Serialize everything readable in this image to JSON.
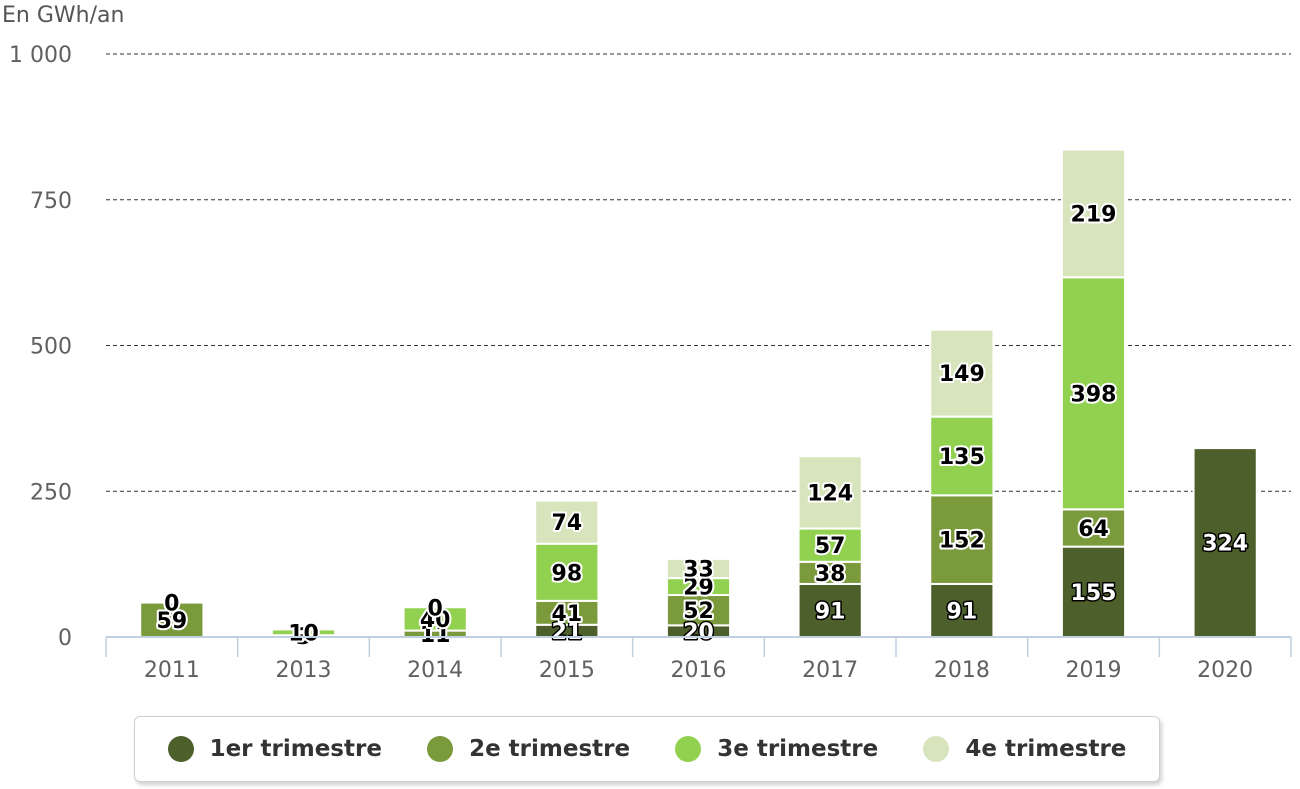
{
  "chart_data": {
    "type": "bar",
    "stacked": true,
    "ylabel": "En GWh/an",
    "ylim": [
      0,
      1000
    ],
    "yticks": [
      0,
      250,
      500,
      750,
      1000
    ],
    "ytick_labels": [
      "0",
      "250",
      "500",
      "750",
      "1 000"
    ],
    "categories": [
      "2011",
      "2013",
      "2014",
      "2015",
      "2016",
      "2017",
      "2018",
      "2019",
      "2020"
    ],
    "series": [
      {
        "name": "1er trimestre",
        "color": "#4d5f2a",
        "values": [
          0,
          0,
          0,
          21,
          20,
          91,
          91,
          155,
          324
        ]
      },
      {
        "name": "2e trimestre",
        "color": "#7a9a3c",
        "values": [
          59,
          3,
          11,
          41,
          52,
          38,
          152,
          64,
          0
        ]
      },
      {
        "name": "3e trimestre",
        "color": "#92d050",
        "values": [
          0,
          10,
          40,
          98,
          29,
          57,
          135,
          398,
          0
        ]
      },
      {
        "name": "4e trimestre",
        "color": "#d8e4bc",
        "values": [
          0,
          0,
          0,
          74,
          33,
          124,
          149,
          219,
          0
        ]
      }
    ],
    "data_labels": [
      [
        "",
        "",
        "",
        "21",
        "20",
        "91",
        "91",
        "155",
        "324"
      ],
      [
        "59",
        "3",
        "11",
        "41",
        "52",
        "38",
        "152",
        "64",
        ""
      ],
      [
        "0",
        "10",
        "40",
        "98",
        "29",
        "57",
        "135",
        "398",
        ""
      ],
      [
        "",
        "",
        "0",
        "74",
        "33",
        "124",
        "149",
        "219",
        ""
      ]
    ],
    "grid": true,
    "legend_position": "bottom"
  }
}
